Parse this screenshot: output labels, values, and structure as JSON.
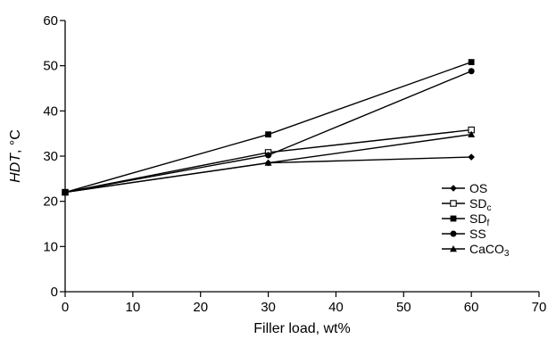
{
  "chart_data": {
    "type": "line",
    "title": "",
    "xlabel": "Filler load, wt%",
    "ylabel": {
      "italic": "HDT",
      "rest": ", °C"
    },
    "xlim": [
      0,
      70
    ],
    "ylim": [
      0,
      60
    ],
    "xticks": [
      0,
      10,
      20,
      30,
      40,
      50,
      60,
      70
    ],
    "yticks": [
      0,
      10,
      20,
      30,
      40,
      50,
      60
    ],
    "x": [
      0,
      30,
      60
    ],
    "grid": false,
    "legend_position": "right",
    "series": [
      {
        "name": "OS",
        "base": "OS",
        "sub": "",
        "marker": "diamond",
        "values": [
          22,
          28.5,
          29.8
        ]
      },
      {
        "name": "SDc",
        "base": "SD",
        "sub": "c",
        "marker": "square-open",
        "values": [
          22,
          30.8,
          35.8
        ]
      },
      {
        "name": "SDf",
        "base": "SD",
        "sub": "f",
        "marker": "square-filled",
        "values": [
          22,
          34.8,
          50.8
        ]
      },
      {
        "name": "SS",
        "base": "SS",
        "sub": "",
        "marker": "circle",
        "values": [
          22,
          30.2,
          48.8
        ]
      },
      {
        "name": "CaCO3",
        "base": "CaCO",
        "sub": "3",
        "marker": "triangle",
        "values": [
          22,
          28.5,
          34.8
        ]
      }
    ]
  }
}
